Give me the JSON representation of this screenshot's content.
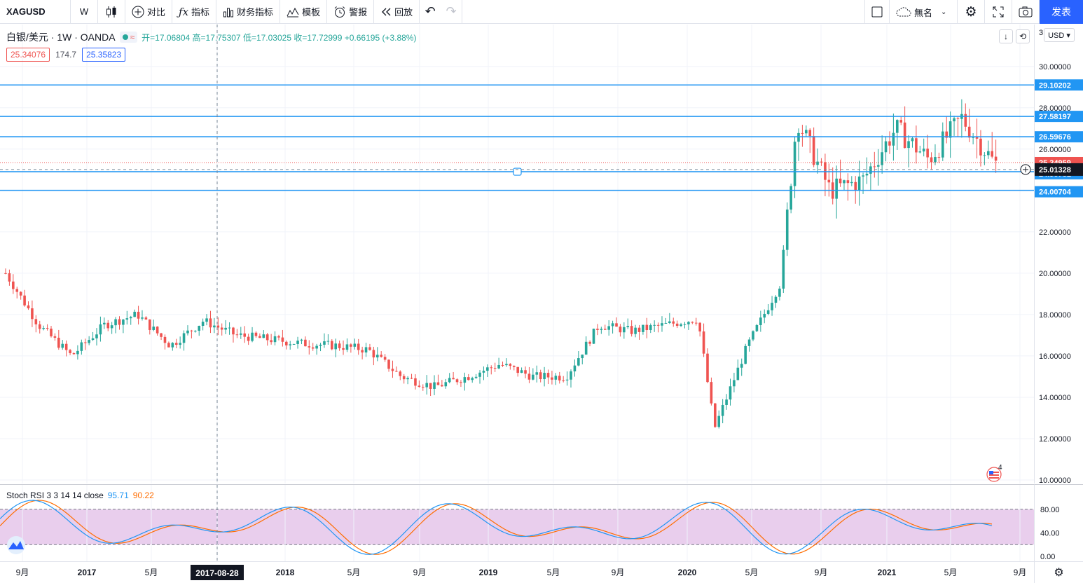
{
  "toolbar": {
    "symbol": "XAGUSD",
    "interval": "W",
    "compare_label": "对比",
    "indicators_label": "指标",
    "financials_label": "财务指标",
    "templates_label": "模板",
    "alert_label": "警报",
    "replay_label": "回放",
    "layout_name": "無名",
    "publish_label": "发表"
  },
  "legend": {
    "title": "白银/美元 · 1W · OANDA",
    "ohlc": "开=17.06804 高=17.75307 低=17.03025 收=17.72999 +0.66195 (+3.88%)",
    "bid_value": "25.34076",
    "spread_value": "174.7",
    "ask_value": "25.35823",
    "wave_symbol": "≈"
  },
  "currency": "USD ▾",
  "oscillator": {
    "name": "Stoch RSI 3 3 14 14 close",
    "k_value": "95.71",
    "d_value": "90.22",
    "ticks": [
      "80.00",
      "40.00",
      "0.00"
    ]
  },
  "time_axis": {
    "labels": [
      "9月",
      "2017",
      "5月",
      "2017-08-28",
      "2018",
      "5月",
      "9月",
      "2019",
      "5月",
      "9月",
      "2020",
      "5月",
      "9月",
      "2021",
      "5月",
      "9月"
    ]
  },
  "price_axis": {
    "top_partial": "3",
    "ticks": [
      "30.00000",
      "28.00000",
      "26.00000",
      "22.00000",
      "20.00000",
      "18.00000",
      "16.00000",
      "14.00000",
      "12.00000",
      "10.00000"
    ],
    "level_labels": [
      "29.10202",
      "27.58197",
      "26.59676",
      "24.90781",
      "24.00704"
    ],
    "current_label": "25.01328",
    "last_price_label": "25.34959"
  },
  "badge_count": "4",
  "colors": {
    "up": "#26a69a",
    "down": "#ef5350",
    "level_line": "#2196f3",
    "osc_k": "#2196f3",
    "osc_d": "#ff6d00",
    "osc_band": "#e1bee7",
    "accent": "#2962ff"
  },
  "chart_data": {
    "type": "candlestick",
    "symbol": "XAGUSD",
    "interval": "1W",
    "y_range": [
      10,
      30.5
    ],
    "horizontal_levels": [
      29.10202,
      27.58197,
      26.59676,
      24.90781,
      24.00704
    ],
    "crosshair_price": 25.01328,
    "crosshair_date": "2017-08-28",
    "price_path": [
      {
        "date": "2016-08",
        "close": 20.0
      },
      {
        "date": "2016-10",
        "close": 17.5
      },
      {
        "date": "2016-12",
        "close": 16.0
      },
      {
        "date": "2017-02",
        "close": 17.5
      },
      {
        "date": "2017-04",
        "close": 18.0
      },
      {
        "date": "2017-06",
        "close": 16.5
      },
      {
        "date": "2017-08",
        "close": 17.7
      },
      {
        "date": "2017-10",
        "close": 17.0
      },
      {
        "date": "2017-12",
        "close": 16.8
      },
      {
        "date": "2018-02",
        "close": 16.6
      },
      {
        "date": "2018-04",
        "close": 16.5
      },
      {
        "date": "2018-06",
        "close": 16.3
      },
      {
        "date": "2018-08",
        "close": 15.0
      },
      {
        "date": "2018-10",
        "close": 14.5
      },
      {
        "date": "2018-12",
        "close": 15.0
      },
      {
        "date": "2019-02",
        "close": 15.6
      },
      {
        "date": "2019-04",
        "close": 15.0
      },
      {
        "date": "2019-06",
        "close": 15.0
      },
      {
        "date": "2019-08",
        "close": 17.5
      },
      {
        "date": "2019-10",
        "close": 17.2
      },
      {
        "date": "2019-12",
        "close": 17.5
      },
      {
        "date": "2020-02",
        "close": 17.8
      },
      {
        "date": "2020-03",
        "close": 12.5
      },
      {
        "date": "2020-05",
        "close": 16.5
      },
      {
        "date": "2020-07",
        "close": 19.5
      },
      {
        "date": "2020-08",
        "close": 27.5
      },
      {
        "date": "2020-10",
        "close": 24.0
      },
      {
        "date": "2020-12",
        "close": 24.5
      },
      {
        "date": "2021-02",
        "close": 27.0
      },
      {
        "date": "2021-04",
        "close": 25.5
      },
      {
        "date": "2021-06",
        "close": 27.5
      },
      {
        "date": "2021-08",
        "close": 25.3
      }
    ],
    "stoch_rsi": {
      "k": 95.71,
      "d": 90.22,
      "upper": 80,
      "lower": 20
    }
  }
}
